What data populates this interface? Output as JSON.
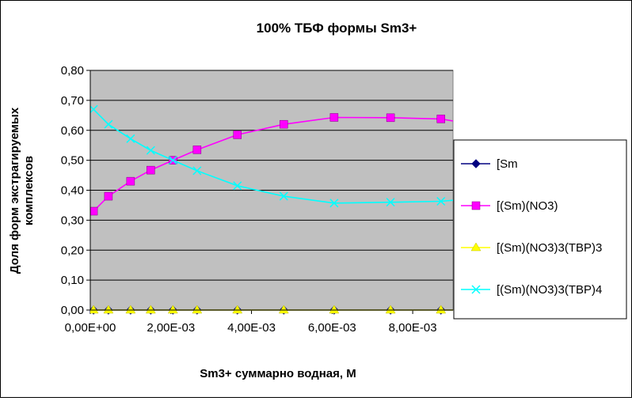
{
  "chart_data": {
    "type": "line",
    "title": "100%  ТБФ  формы Sm3+",
    "xlabel": "Sm3+ суммарно   водная, М",
    "ylabel_line1": "Доля форм экстрагируемых",
    "ylabel_line2": "комплексов",
    "xlim": [
      0,
      0.009
    ],
    "ylim": [
      0,
      0.8
    ],
    "x_ticks": [
      0,
      0.002,
      0.004,
      0.006,
      0.008
    ],
    "x_tick_labels": [
      "0,00E+00",
      "2,00E-03",
      "4,00E-03",
      "6,00E-03",
      "8,00E-03"
    ],
    "y_ticks": [
      0,
      0.1,
      0.2,
      0.3,
      0.4,
      0.5,
      0.6,
      0.7,
      0.8
    ],
    "y_tick_labels": [
      "0,00",
      "0,10",
      "0,20",
      "0,30",
      "0,40",
      "0,50",
      "0,60",
      "0,70",
      "0,80"
    ],
    "grid": true,
    "legend_position": "right",
    "plot_background": "#c0c0c0",
    "series": [
      {
        "name": "[Sm",
        "color": "#000080",
        "marker": "diamond",
        "x": [
          8e-05,
          0.00045,
          0.001,
          0.0015,
          0.00205,
          0.00265,
          0.00365,
          0.0048,
          0.00605,
          0.00745,
          0.0087,
          0.0095
        ],
        "y": [
          0,
          0,
          0,
          0,
          0,
          0,
          0,
          0,
          0,
          0,
          0,
          0
        ]
      },
      {
        "name": "[(Sm)(NO3)",
        "color": "#ff00ff",
        "marker": "square",
        "x": [
          8e-05,
          0.00045,
          0.001,
          0.0015,
          0.00205,
          0.00265,
          0.00365,
          0.0048,
          0.00605,
          0.00745,
          0.0087,
          0.0095
        ],
        "y": [
          0.33,
          0.38,
          0.43,
          0.467,
          0.5,
          0.535,
          0.585,
          0.62,
          0.643,
          0.642,
          0.638,
          0.62
        ]
      },
      {
        "name": "[(Sm)(NO3)3(TBP)3",
        "color": "#ffff00",
        "marker": "triangle",
        "x": [
          8e-05,
          0.00045,
          0.001,
          0.0015,
          0.00205,
          0.00265,
          0.00365,
          0.0048,
          0.00605,
          0.00745,
          0.0087,
          0.0095
        ],
        "y": [
          0,
          0,
          0,
          0,
          0,
          0,
          0,
          0,
          0,
          0,
          0,
          0
        ]
      },
      {
        "name": "[(Sm)(NO3)3(TBP)4",
        "color": "#00ffff",
        "marker": "x",
        "x": [
          8e-05,
          0.00045,
          0.001,
          0.0015,
          0.00205,
          0.00265,
          0.00365,
          0.0048,
          0.00605,
          0.00745,
          0.0087,
          0.0095
        ],
        "y": [
          0.67,
          0.62,
          0.572,
          0.533,
          0.5,
          0.465,
          0.415,
          0.38,
          0.357,
          0.36,
          0.363,
          0.372
        ]
      }
    ]
  }
}
